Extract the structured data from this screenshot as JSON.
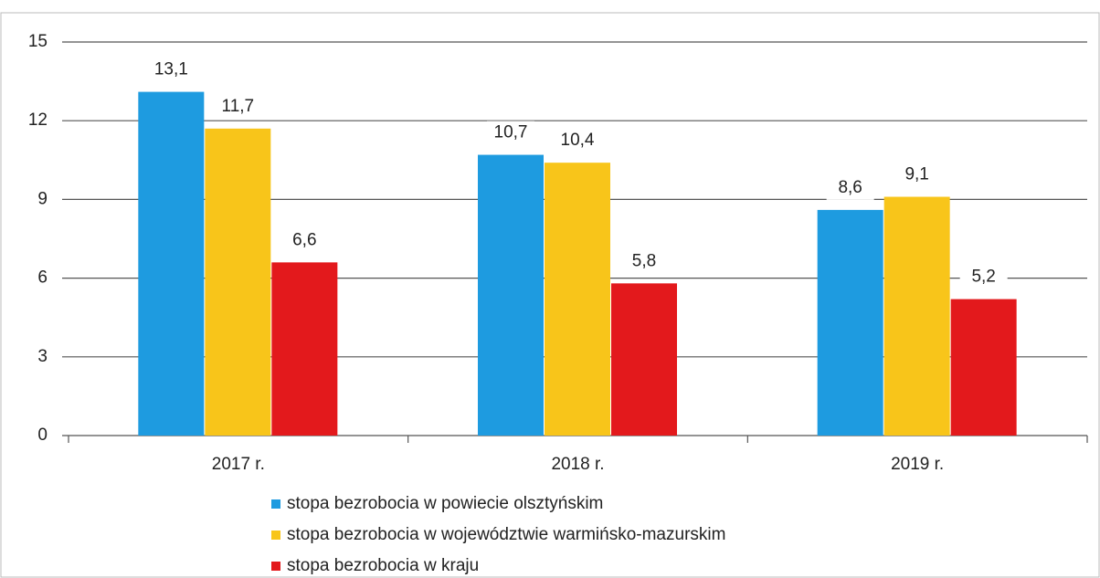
{
  "chart_data": {
    "type": "bar",
    "categories": [
      "2017 r.",
      "2018 r.",
      "2019 r."
    ],
    "series": [
      {
        "name": "stopa bezrobocia w powiecie olsztyńskim",
        "color": "#1e9be0",
        "values": [
          13.1,
          10.7,
          8.6
        ],
        "value_labels": [
          "13,1",
          "10,7",
          "8,6"
        ]
      },
      {
        "name": "stopa bezrobocia w województwie warmińsko-mazurskim",
        "color": "#f8c51a",
        "values": [
          11.7,
          10.4,
          9.1
        ],
        "value_labels": [
          "11,7",
          "10,4",
          "9,1"
        ]
      },
      {
        "name": "stopa bezrobocia w kraju",
        "color": "#e3191c",
        "values": [
          6.6,
          5.8,
          5.2
        ],
        "value_labels": [
          "6,6",
          "5,8",
          "5,2"
        ]
      }
    ],
    "ylim": [
      0,
      15
    ],
    "yticks": [
      0,
      3,
      6,
      9,
      12,
      15
    ],
    "grid": true,
    "legend": "bottom"
  }
}
